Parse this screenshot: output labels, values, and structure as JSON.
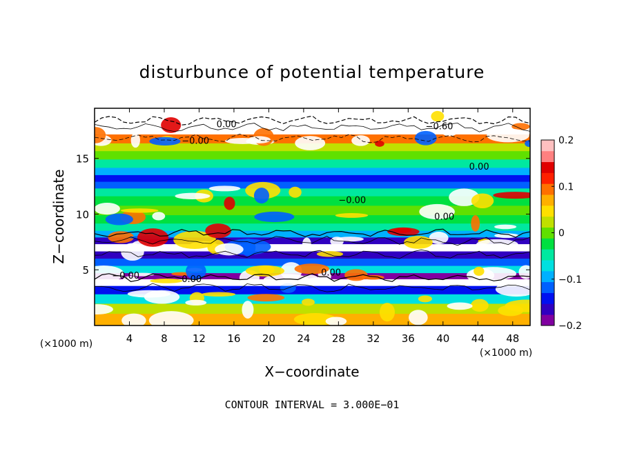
{
  "chart_data": {
    "type": "heatmap",
    "title": "disturbunce of potential temperature",
    "xlabel": "X−coordinate",
    "ylabel": "Z−coordinate",
    "x_unit": "(×1000 m)",
    "y_unit": "(×1000 m)",
    "xlim": [
      0,
      50
    ],
    "ylim": [
      0,
      19.5
    ],
    "x_ticks": [
      4,
      8,
      12,
      16,
      20,
      24,
      28,
      32,
      36,
      40,
      44,
      48
    ],
    "y_ticks": [
      5,
      10,
      15
    ],
    "colorbar": {
      "min": -0.2,
      "max": 0.2,
      "ticks": [
        0.2,
        0.1,
        0,
        -0.1,
        -0.2
      ],
      "tick_labels": [
        "0.2",
        "0.1",
        "0",
        "−0.1",
        "−0.2"
      ],
      "colors": [
        "#8000a0",
        "#3000c0",
        "#0010f0",
        "#0060ff",
        "#00b0ff",
        "#00e0e0",
        "#00e8a0",
        "#00e040",
        "#60e000",
        "#c0e000",
        "#ffe000",
        "#ffb000",
        "#ff7000",
        "#ff2000",
        "#e00000",
        "#ff8080",
        "#ffc0c0"
      ]
    },
    "contour_interval_label": "CONTOUR INTERVAL = 3.000E−01",
    "contour_labels": [
      "0.00",
      "−0.00",
      "−0.60",
      "−0.00",
      "0.00",
      "−0.00",
      "0.00",
      "0.00",
      "0.00"
    ],
    "bands": [
      {
        "z": 18.7,
        "value": 0.25
      },
      {
        "z": 17.6,
        "value": 0.22
      },
      {
        "z": 16.7,
        "value": 0.1
      },
      {
        "z": 16.0,
        "value": 0.03
      },
      {
        "z": 15.3,
        "value": 0.0
      },
      {
        "z": 14.5,
        "value": -0.05
      },
      {
        "z": 13.8,
        "value": -0.1
      },
      {
        "z": 13.2,
        "value": -0.15
      },
      {
        "z": 12.6,
        "value": -0.12
      },
      {
        "z": 12.0,
        "value": -0.05
      },
      {
        "z": 11.2,
        "value": -0.02
      },
      {
        "z": 10.3,
        "value": 0.0
      },
      {
        "z": 9.5,
        "value": -0.02
      },
      {
        "z": 8.8,
        "value": -0.05
      },
      {
        "z": 8.2,
        "value": -0.1
      },
      {
        "z": 7.6,
        "value": -0.16
      },
      {
        "z": 7.0,
        "value": -0.25
      },
      {
        "z": 6.3,
        "value": -0.16
      },
      {
        "z": 5.7,
        "value": -0.12
      },
      {
        "z": 5.0,
        "value": -0.08
      },
      {
        "z": 4.4,
        "value": -0.18
      },
      {
        "z": 3.9,
        "value": -0.25
      },
      {
        "z": 3.2,
        "value": -0.14
      },
      {
        "z": 2.4,
        "value": -0.06
      },
      {
        "z": 1.5,
        "value": 0.02
      },
      {
        "z": 0.6,
        "value": 0.06
      }
    ]
  }
}
